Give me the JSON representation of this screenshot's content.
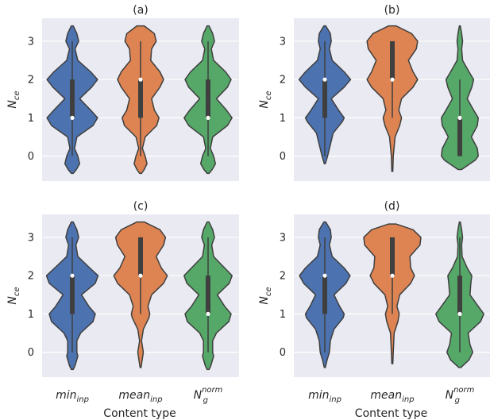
{
  "colors": {
    "panel_bg": "#eaeaf2",
    "grid": "#ffffff",
    "edge": "#3f3f3f",
    "min_inp": "#4c72b0",
    "mean_inp": "#dd8452",
    "ng_norm": "#55a868"
  },
  "figure": {
    "xlabel": "Content type",
    "category_labels": [
      {
        "base": "min",
        "sub": "inp",
        "sup": ""
      },
      {
        "base": "mean",
        "sub": "inp",
        "sup": ""
      },
      {
        "base": "N",
        "sub": "g",
        "sup": "norm"
      }
    ]
  },
  "chart_data": [
    {
      "type": "violin",
      "title": "(a)",
      "ylabel": "N_ce",
      "ylabel_base": "N",
      "ylabel_sub": "ce",
      "ylim": [
        -0.65,
        3.6
      ],
      "yticks": [
        0,
        1,
        2,
        3
      ],
      "grid": true,
      "categories": [
        "min_inp",
        "mean_inp",
        "N_g^norm"
      ],
      "series": [
        {
          "label": "min_inp",
          "color": "#4c72b0",
          "profile": [
            [
              -0.45,
              0.02
            ],
            [
              -0.35,
              0.09
            ],
            [
              -0.2,
              0.16
            ],
            [
              0,
              0.12
            ],
            [
              0.2,
              0.05
            ],
            [
              0.5,
              0.1
            ],
            [
              0.8,
              0.45
            ],
            [
              1,
              0.55
            ],
            [
              1.2,
              0.4
            ],
            [
              1.5,
              0.16
            ],
            [
              1.8,
              0.42
            ],
            [
              2,
              0.55
            ],
            [
              2.2,
              0.4
            ],
            [
              2.5,
              0.12
            ],
            [
              2.8,
              0.06
            ],
            [
              3,
              0.14
            ],
            [
              3.2,
              0.1
            ],
            [
              3.4,
              0.02
            ]
          ],
          "q1": 1.0,
          "median": 1.0,
          "q3": 2.0,
          "whisker": [
            0.0,
            3.0
          ]
        },
        {
          "label": "mean_inp",
          "color": "#dd8452",
          "profile": [
            [
              -0.45,
              0.02
            ],
            [
              -0.35,
              0.08
            ],
            [
              -0.2,
              0.14
            ],
            [
              0,
              0.1
            ],
            [
              0.2,
              0.04
            ],
            [
              0.5,
              0.1
            ],
            [
              0.8,
              0.35
            ],
            [
              1,
              0.4
            ],
            [
              1.2,
              0.3
            ],
            [
              1.5,
              0.24
            ],
            [
              1.8,
              0.42
            ],
            [
              2,
              0.5
            ],
            [
              2.2,
              0.42
            ],
            [
              2.5,
              0.22
            ],
            [
              2.8,
              0.24
            ],
            [
              3,
              0.34
            ],
            [
              3.2,
              0.3
            ],
            [
              3.4,
              0.08
            ]
          ],
          "q1": 1.0,
          "median": 2.0,
          "q3": 2.0,
          "whisker": [
            0.0,
            3.0
          ]
        },
        {
          "label": "N_g^norm",
          "color": "#55a868",
          "profile": [
            [
              -0.45,
              0.02
            ],
            [
              -0.35,
              0.09
            ],
            [
              -0.2,
              0.16
            ],
            [
              0,
              0.12
            ],
            [
              0.2,
              0.05
            ],
            [
              0.5,
              0.1
            ],
            [
              0.8,
              0.42
            ],
            [
              1,
              0.52
            ],
            [
              1.2,
              0.4
            ],
            [
              1.5,
              0.18
            ],
            [
              1.8,
              0.42
            ],
            [
              2,
              0.5
            ],
            [
              2.2,
              0.38
            ],
            [
              2.5,
              0.12
            ],
            [
              2.8,
              0.07
            ],
            [
              3,
              0.14
            ],
            [
              3.2,
              0.1
            ],
            [
              3.4,
              0.02
            ]
          ],
          "q1": 1.0,
          "median": 1.0,
          "q3": 2.0,
          "whisker": [
            0.0,
            3.0
          ]
        }
      ]
    },
    {
      "type": "violin",
      "title": "(b)",
      "ylabel": "N_ce",
      "ylabel_base": "N",
      "ylabel_sub": "ce",
      "ylim": [
        -0.65,
        3.6
      ],
      "yticks": [
        0,
        1,
        2,
        3
      ],
      "grid": true,
      "categories": [
        "min_inp",
        "mean_inp",
        "N_g^norm"
      ],
      "series": [
        {
          "label": "min_inp",
          "color": "#4c72b0",
          "profile": [
            [
              -0.2,
              0.01
            ],
            [
              0,
              0.06
            ],
            [
              0.3,
              0.12
            ],
            [
              0.6,
              0.18
            ],
            [
              0.9,
              0.38
            ],
            [
              1,
              0.42
            ],
            [
              1.2,
              0.3
            ],
            [
              1.5,
              0.14
            ],
            [
              1.8,
              0.42
            ],
            [
              2,
              0.56
            ],
            [
              2.2,
              0.42
            ],
            [
              2.5,
              0.16
            ],
            [
              2.8,
              0.1
            ],
            [
              3,
              0.14
            ],
            [
              3.2,
              0.12
            ],
            [
              3.4,
              0.02
            ]
          ],
          "q1": 1.0,
          "median": 2.0,
          "q3": 2.0,
          "whisker": [
            0.0,
            3.0
          ]
        },
        {
          "label": "mean_inp",
          "color": "#dd8452",
          "profile": [
            [
              -0.4,
              0.01
            ],
            [
              0,
              0.02
            ],
            [
              0.5,
              0.06
            ],
            [
              0.8,
              0.16
            ],
            [
              1,
              0.2
            ],
            [
              1.2,
              0.14
            ],
            [
              1.5,
              0.2
            ],
            [
              1.8,
              0.45
            ],
            [
              2,
              0.55
            ],
            [
              2.2,
              0.45
            ],
            [
              2.5,
              0.35
            ],
            [
              2.8,
              0.52
            ],
            [
              3,
              0.55
            ],
            [
              3.2,
              0.42
            ],
            [
              3.4,
              0.08
            ]
          ],
          "q1": 2.0,
          "median": 2.0,
          "q3": 3.0,
          "whisker": [
            1.0,
            3.0
          ]
        },
        {
          "label": "N_g^norm",
          "color": "#55a868",
          "profile": [
            [
              -0.35,
              0.04
            ],
            [
              -0.1,
              0.34
            ],
            [
              0,
              0.4
            ],
            [
              0.2,
              0.38
            ],
            [
              0.5,
              0.25
            ],
            [
              0.8,
              0.38
            ],
            [
              1,
              0.4
            ],
            [
              1.2,
              0.3
            ],
            [
              1.5,
              0.16
            ],
            [
              1.8,
              0.26
            ],
            [
              2,
              0.3
            ],
            [
              2.2,
              0.2
            ],
            [
              2.5,
              0.06
            ],
            [
              2.8,
              0.04
            ],
            [
              3,
              0.06
            ],
            [
              3.2,
              0.04
            ],
            [
              3.4,
              0.01
            ]
          ],
          "q1": 0.0,
          "median": 1.0,
          "q3": 1.0,
          "whisker": [
            0.0,
            2.0
          ]
        }
      ]
    },
    {
      "type": "violin",
      "title": "(c)",
      "ylabel": "N_ce",
      "ylabel_base": "N",
      "ylabel_sub": "ce",
      "ylim": [
        -0.65,
        3.6
      ],
      "yticks": [
        0,
        1,
        2,
        3
      ],
      "grid": true,
      "categories": [
        "min_inp",
        "mean_inp",
        "N_g^norm"
      ],
      "series": [
        {
          "label": "min_inp",
          "color": "#4c72b0",
          "profile": [
            [
              -0.45,
              0.02
            ],
            [
              -0.35,
              0.06
            ],
            [
              -0.1,
              0.12
            ],
            [
              0,
              0.1
            ],
            [
              0.3,
              0.1
            ],
            [
              0.5,
              0.18
            ],
            [
              0.8,
              0.45
            ],
            [
              1,
              0.5
            ],
            [
              1.2,
              0.36
            ],
            [
              1.5,
              0.2
            ],
            [
              1.8,
              0.5
            ],
            [
              2,
              0.56
            ],
            [
              2.2,
              0.38
            ],
            [
              2.5,
              0.12
            ],
            [
              2.8,
              0.08
            ],
            [
              3,
              0.14
            ],
            [
              3.2,
              0.1
            ],
            [
              3.4,
              0.02
            ]
          ],
          "q1": 1.0,
          "median": 2.0,
          "q3": 2.0,
          "whisker": [
            0.0,
            3.0
          ]
        },
        {
          "label": "mean_inp",
          "color": "#dd8452",
          "profile": [
            [
              -0.4,
              0.01
            ],
            [
              0,
              0.06
            ],
            [
              0.3,
              0.02
            ],
            [
              0.6,
              0.06
            ],
            [
              0.9,
              0.18
            ],
            [
              1,
              0.2
            ],
            [
              1.2,
              0.16
            ],
            [
              1.5,
              0.24
            ],
            [
              1.8,
              0.5
            ],
            [
              2,
              0.58
            ],
            [
              2.2,
              0.45
            ],
            [
              2.5,
              0.34
            ],
            [
              2.8,
              0.5
            ],
            [
              3,
              0.54
            ],
            [
              3.2,
              0.42
            ],
            [
              3.4,
              0.08
            ]
          ],
          "q1": 2.0,
          "median": 2.0,
          "q3": 3.0,
          "whisker": [
            1.0,
            3.0
          ]
        },
        {
          "label": "N_g^norm",
          "color": "#55a868",
          "profile": [
            [
              -0.45,
              0.02
            ],
            [
              -0.35,
              0.06
            ],
            [
              -0.1,
              0.12
            ],
            [
              0,
              0.1
            ],
            [
              0.3,
              0.1
            ],
            [
              0.5,
              0.18
            ],
            [
              0.8,
              0.45
            ],
            [
              1,
              0.5
            ],
            [
              1.2,
              0.36
            ],
            [
              1.5,
              0.2
            ],
            [
              1.8,
              0.46
            ],
            [
              2,
              0.52
            ],
            [
              2.2,
              0.36
            ],
            [
              2.5,
              0.12
            ],
            [
              2.8,
              0.08
            ],
            [
              3,
              0.14
            ],
            [
              3.2,
              0.1
            ],
            [
              3.4,
              0.02
            ]
          ],
          "q1": 1.0,
          "median": 1.0,
          "q3": 2.0,
          "whisker": [
            0.0,
            3.0
          ]
        }
      ]
    },
    {
      "type": "violin",
      "title": "(d)",
      "ylabel": "N_ce",
      "ylabel_base": "N",
      "ylabel_sub": "ce",
      "ylim": [
        -0.65,
        3.6
      ],
      "yticks": [
        0,
        1,
        2,
        3
      ],
      "grid": true,
      "categories": [
        "min_inp",
        "mean_inp",
        "N_g^norm"
      ],
      "series": [
        {
          "label": "min_inp",
          "color": "#4c72b0",
          "profile": [
            [
              -0.4,
              0.01
            ],
            [
              -0.2,
              0.05
            ],
            [
              0,
              0.1
            ],
            [
              0.3,
              0.12
            ],
            [
              0.6,
              0.2
            ],
            [
              0.9,
              0.4
            ],
            [
              1,
              0.42
            ],
            [
              1.2,
              0.32
            ],
            [
              1.5,
              0.2
            ],
            [
              1.8,
              0.46
            ],
            [
              2,
              0.55
            ],
            [
              2.2,
              0.42
            ],
            [
              2.5,
              0.16
            ],
            [
              2.8,
              0.1
            ],
            [
              3,
              0.14
            ],
            [
              3.2,
              0.12
            ],
            [
              3.4,
              0.02
            ]
          ],
          "q1": 1.0,
          "median": 2.0,
          "q3": 2.0,
          "whisker": [
            0.0,
            3.0
          ]
        },
        {
          "label": "mean_inp",
          "color": "#dd8452",
          "profile": [
            [
              -0.3,
              0.01
            ],
            [
              0,
              0.02
            ],
            [
              0.5,
              0.04
            ],
            [
              0.8,
              0.12
            ],
            [
              1,
              0.15
            ],
            [
              1.2,
              0.1
            ],
            [
              1.5,
              0.16
            ],
            [
              1.8,
              0.4
            ],
            [
              2,
              0.48
            ],
            [
              2.2,
              0.4
            ],
            [
              2.5,
              0.38
            ],
            [
              2.8,
              0.6
            ],
            [
              3,
              0.62
            ],
            [
              3.2,
              0.45
            ],
            [
              3.35,
              0.08
            ]
          ],
          "q1": 2.0,
          "median": 2.0,
          "q3": 3.0,
          "whisker": [
            1.0,
            3.0
          ]
        },
        {
          "label": "N_g^norm",
          "color": "#55a868",
          "profile": [
            [
              -0.4,
              0.02
            ],
            [
              -0.2,
              0.2
            ],
            [
              0,
              0.28
            ],
            [
              0.2,
              0.22
            ],
            [
              0.5,
              0.18
            ],
            [
              0.8,
              0.45
            ],
            [
              1,
              0.52
            ],
            [
              1.2,
              0.4
            ],
            [
              1.5,
              0.22
            ],
            [
              1.8,
              0.24
            ],
            [
              2,
              0.26
            ],
            [
              2.2,
              0.16
            ],
            [
              2.5,
              0.05
            ],
            [
              2.8,
              0.04
            ],
            [
              3,
              0.06
            ],
            [
              3.2,
              0.04
            ],
            [
              3.4,
              0.01
            ]
          ],
          "q1": 1.0,
          "median": 1.0,
          "q3": 2.0,
          "whisker": [
            0.0,
            3.0
          ]
        }
      ]
    }
  ]
}
